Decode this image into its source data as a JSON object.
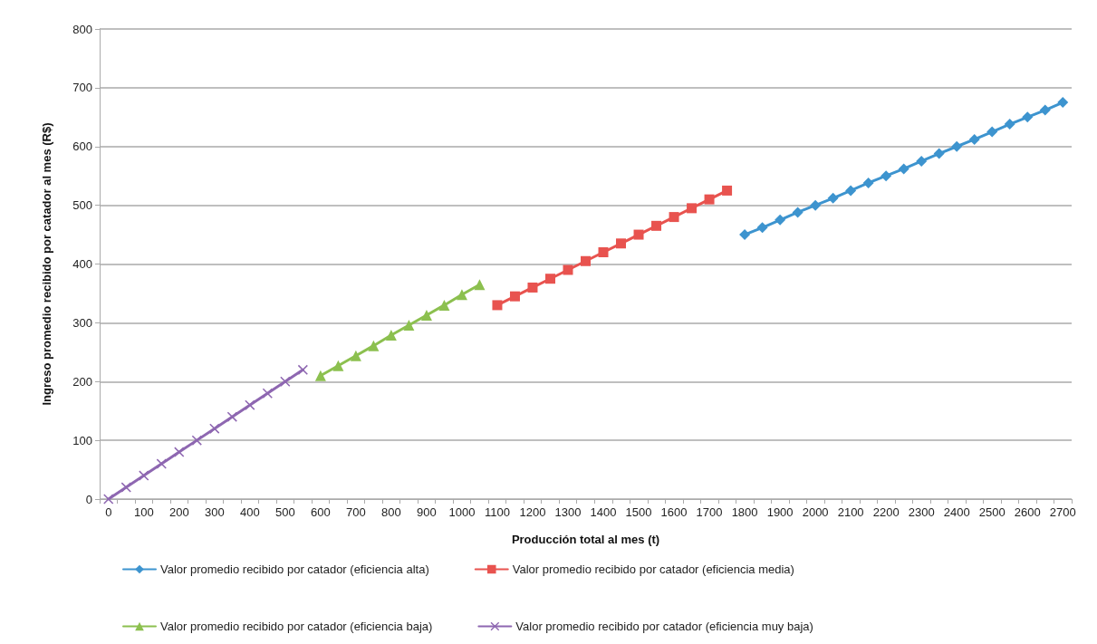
{
  "chart_data": {
    "type": "line",
    "xlabel": "Producción total al mes (t)",
    "ylabel": "Ingreso promedio recibido por catador al mes (R$)",
    "categories": [
      "0",
      null,
      "100",
      null,
      "200",
      null,
      "300",
      null,
      "400",
      null,
      "500",
      null,
      "600",
      null,
      "700",
      null,
      "800",
      null,
      "900",
      null,
      "1000",
      null,
      "1100",
      null,
      "1200",
      null,
      "1300",
      null,
      "1400",
      null,
      "1500",
      null,
      "1600",
      null,
      "1700",
      null,
      "1800",
      null,
      "1900",
      null,
      "2000",
      null,
      "2100",
      null,
      "2200",
      null,
      "2300",
      null,
      "2400",
      null,
      "2500",
      null,
      "2600",
      null,
      "2700"
    ],
    "ylim": [
      0,
      800
    ],
    "yticks": [
      0,
      100,
      200,
      300,
      400,
      500,
      600,
      700,
      800
    ],
    "grid": "y",
    "legend": "bottom",
    "line_style": "solid",
    "series": [
      {
        "name": "Valor promedio recibido por catador (eficiencia alta)",
        "color": "#3d94cf",
        "marker": "diamond",
        "values": [
          null,
          null,
          null,
          null,
          null,
          null,
          null,
          null,
          null,
          null,
          null,
          null,
          null,
          null,
          null,
          null,
          null,
          null,
          null,
          null,
          null,
          null,
          null,
          null,
          null,
          null,
          null,
          null,
          null,
          null,
          null,
          null,
          null,
          null,
          null,
          null,
          450,
          462,
          475,
          488,
          500,
          512,
          525,
          538,
          550,
          562,
          575,
          588,
          600,
          612,
          625,
          638,
          650,
          662,
          675
        ]
      },
      {
        "name": "Valor promedio recibido por catador (eficiencia media)",
        "color": "#e8534f",
        "marker": "square",
        "values": [
          null,
          null,
          null,
          null,
          null,
          null,
          null,
          null,
          null,
          null,
          null,
          null,
          null,
          null,
          null,
          null,
          null,
          null,
          null,
          null,
          null,
          null,
          330,
          345,
          360,
          375,
          390,
          405,
          420,
          435,
          450,
          465,
          480,
          495,
          510,
          525,
          null,
          null,
          null,
          null,
          null,
          null,
          null,
          null,
          null,
          null,
          null,
          null,
          null,
          null,
          null,
          null,
          null,
          null,
          null
        ]
      },
      {
        "name": "Valor promedio recibido por catador (eficiencia baja)",
        "color": "#8cc04f",
        "marker": "triangle",
        "values": [
          null,
          null,
          null,
          null,
          null,
          null,
          null,
          null,
          null,
          null,
          null,
          null,
          210,
          227,
          244,
          261,
          279,
          296,
          313,
          330,
          348,
          365,
          null,
          null,
          null,
          null,
          null,
          null,
          null,
          null,
          null,
          null,
          null,
          null,
          null,
          null,
          null,
          null,
          null,
          null,
          null,
          null,
          null,
          null,
          null,
          null,
          null,
          null,
          null,
          null,
          null,
          null,
          null,
          null,
          null
        ]
      },
      {
        "name": "Valor promedio recibido por catador (eficiencia muy baja)",
        "color": "#8e67b1",
        "marker": "cross",
        "values": [
          0,
          20,
          40,
          60,
          80,
          100,
          120,
          140,
          160,
          180,
          200,
          220,
          null,
          null,
          null,
          null,
          null,
          null,
          null,
          null,
          null,
          null,
          null,
          null,
          null,
          null,
          null,
          null,
          null,
          null,
          null,
          null,
          null,
          null,
          null,
          null,
          null,
          null,
          null,
          null,
          null,
          null,
          null,
          null,
          null,
          null,
          null,
          null,
          null,
          null,
          null,
          null,
          null,
          null,
          null
        ]
      }
    ]
  }
}
